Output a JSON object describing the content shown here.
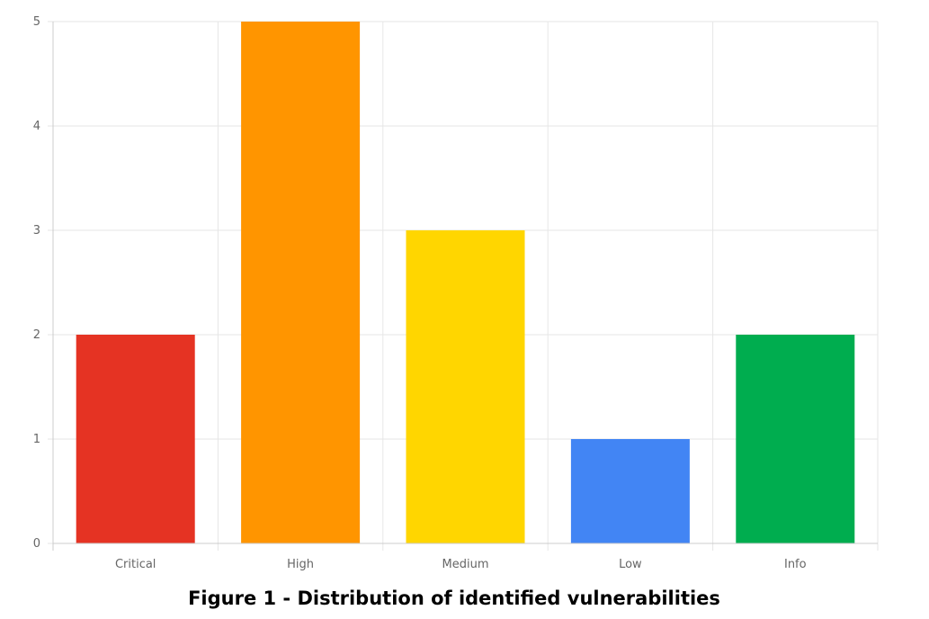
{
  "chart_data": {
    "type": "bar",
    "categories": [
      "Critical",
      "High",
      "Medium",
      "Low",
      "Info"
    ],
    "values": [
      2,
      5,
      3,
      1,
      2
    ],
    "colors": [
      "#e53323",
      "#ff9500",
      "#ffd600",
      "#4285f4",
      "#00ad4f"
    ],
    "yticks": [
      "0",
      "1",
      "2",
      "3",
      "4",
      "5"
    ],
    "ylim": [
      0,
      5
    ],
    "grid": true,
    "gridline_color": "#e6e6e6",
    "axis_color": "#cccccc",
    "tick_label_color": "#666666"
  },
  "caption": "Figure 1 - Distribution of identified vulnerabilities"
}
